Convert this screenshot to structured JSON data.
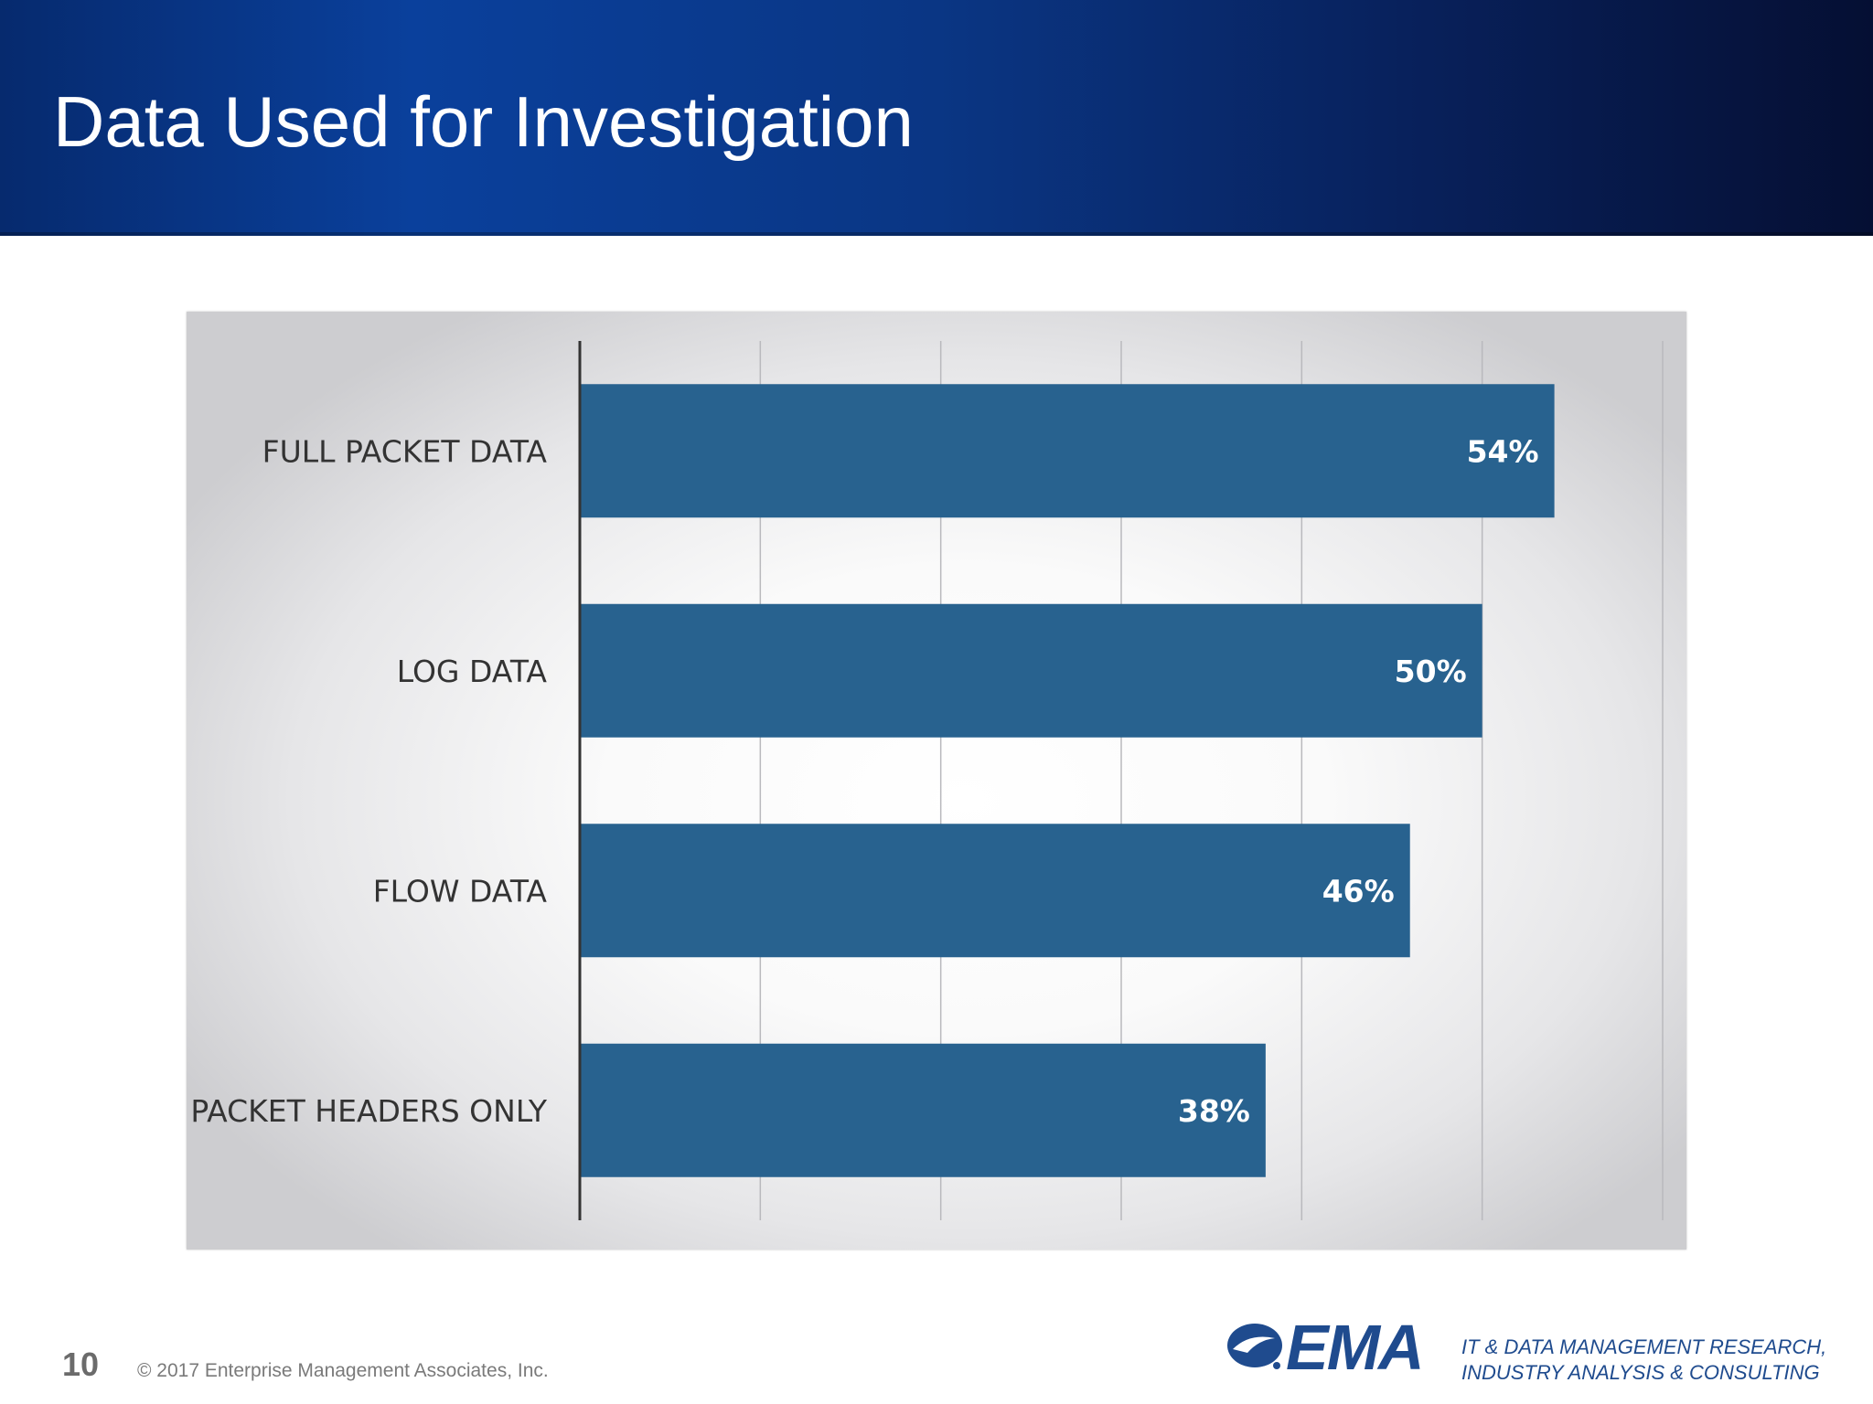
{
  "slide": {
    "title": "Data Used for Investigation",
    "page_number": "10",
    "copyright": "© 2017 Enterprise Management Associates, Inc.",
    "logo_text": "EMA",
    "tagline_line1": "IT & DATA MANAGEMENT RESEARCH,",
    "tagline_line2": "INDUSTRY ANALYSIS & CONSULTING"
  },
  "colors": {
    "header_blue": "#0a409c",
    "bar": "#28628f",
    "bar_label": "#ffffff",
    "category_label": "#333333",
    "logo_blue": "#1f4b8e"
  },
  "chart_data": {
    "type": "bar",
    "orientation": "horizontal",
    "categories": [
      "FULL PACKET DATA",
      "LOG DATA",
      "FLOW DATA",
      "PACKET HEADERS ONLY"
    ],
    "values": [
      54,
      50,
      46,
      38
    ],
    "value_labels": [
      "54%",
      "50%",
      "46%",
      "38%"
    ],
    "xlim": [
      0,
      60
    ],
    "x_gridline_step": 10,
    "grid": true,
    "legend": "none",
    "title": "",
    "xlabel": "",
    "ylabel": ""
  }
}
